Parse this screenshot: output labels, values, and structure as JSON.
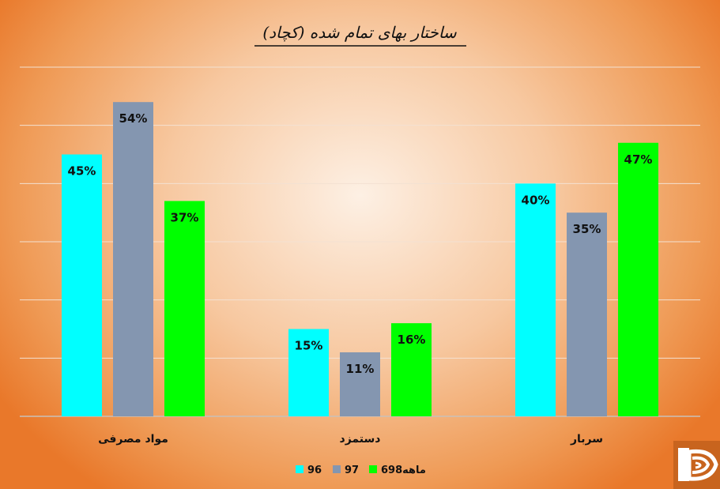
{
  "chart_data": {
    "type": "bar",
    "title": "ساختار بهای تمام شده (کچاد)",
    "categories": [
      "مواد مصرفی",
      "دستمزد",
      "سربار"
    ],
    "series": [
      {
        "name": "96",
        "values": [
          45,
          15,
          40
        ],
        "labels": [
          "45%",
          "15%",
          "40%"
        ],
        "color": "#00ffff"
      },
      {
        "name": "97",
        "values": [
          54,
          11,
          35
        ],
        "labels": [
          "54%",
          "11%",
          "35%"
        ],
        "color": "#8496b0"
      },
      {
        "name": "6ماهه98",
        "values": [
          37,
          16,
          47
        ],
        "labels": [
          "37%",
          "16%",
          "47%"
        ],
        "color": "#00ff00"
      }
    ],
    "ylim": [
      0,
      60
    ],
    "grid": true,
    "legend_position": "bottom"
  },
  "logo": {
    "name": "corner-logo-icon",
    "color": "#c8641e"
  }
}
